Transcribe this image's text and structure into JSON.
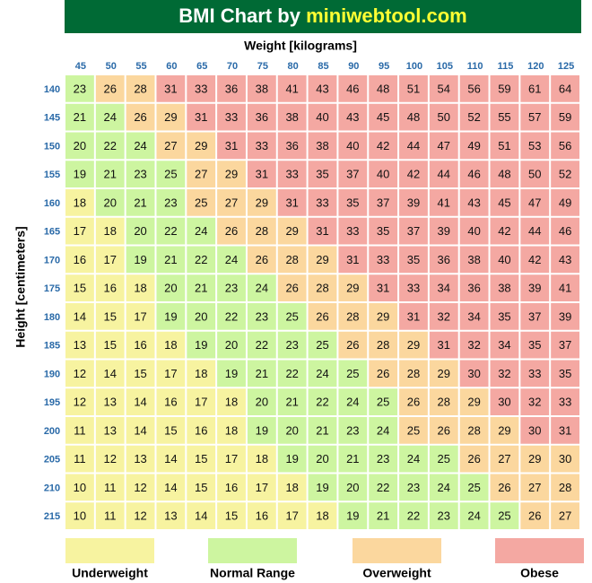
{
  "header": {
    "title": "BMI Chart by",
    "site": "miniwebtool.com"
  },
  "table": {
    "x_label": "Weight [kilograms]",
    "y_label": "Height [centimeters]",
    "weights": [
      45,
      50,
      55,
      60,
      65,
      70,
      75,
      80,
      85,
      90,
      95,
      100,
      105,
      110,
      115,
      120,
      125
    ],
    "heights": [
      140,
      145,
      150,
      155,
      160,
      165,
      170,
      175,
      180,
      185,
      190,
      195,
      200,
      205,
      210,
      215
    ],
    "rows": [
      [
        23,
        26,
        28,
        31,
        33,
        36,
        38,
        41,
        43,
        46,
        48,
        51,
        54,
        56,
        59,
        61,
        64
      ],
      [
        21,
        24,
        26,
        29,
        31,
        33,
        36,
        38,
        40,
        43,
        45,
        48,
        50,
        52,
        55,
        57,
        59
      ],
      [
        20,
        22,
        24,
        27,
        29,
        31,
        33,
        36,
        38,
        40,
        42,
        44,
        47,
        49,
        51,
        53,
        56
      ],
      [
        19,
        21,
        23,
        25,
        27,
        29,
        31,
        33,
        35,
        37,
        40,
        42,
        44,
        46,
        48,
        50,
        52
      ],
      [
        18,
        20,
        21,
        23,
        25,
        27,
        29,
        31,
        33,
        35,
        37,
        39,
        41,
        43,
        45,
        47,
        49
      ],
      [
        17,
        18,
        20,
        22,
        24,
        26,
        28,
        29,
        31,
        33,
        35,
        37,
        39,
        40,
        42,
        44,
        46
      ],
      [
        16,
        17,
        19,
        21,
        22,
        24,
        26,
        28,
        29,
        31,
        33,
        35,
        36,
        38,
        40,
        42,
        43
      ],
      [
        15,
        16,
        18,
        20,
        21,
        23,
        24,
        26,
        28,
        29,
        31,
        33,
        34,
        36,
        38,
        39,
        41
      ],
      [
        14,
        15,
        17,
        19,
        20,
        22,
        23,
        25,
        26,
        28,
        29,
        31,
        32,
        34,
        35,
        37,
        39
      ],
      [
        13,
        15,
        16,
        18,
        19,
        20,
        22,
        23,
        25,
        26,
        28,
        29,
        31,
        32,
        34,
        35,
        37
      ],
      [
        12,
        14,
        15,
        17,
        18,
        19,
        21,
        22,
        24,
        25,
        26,
        28,
        29,
        30,
        32,
        33,
        35
      ],
      [
        12,
        13,
        14,
        16,
        17,
        18,
        20,
        21,
        22,
        24,
        25,
        26,
        28,
        29,
        30,
        32,
        33
      ],
      [
        11,
        13,
        14,
        15,
        16,
        18,
        19,
        20,
        21,
        23,
        24,
        25,
        26,
        28,
        29,
        30,
        31
      ],
      [
        11,
        12,
        13,
        14,
        15,
        17,
        18,
        19,
        20,
        21,
        23,
        24,
        25,
        26,
        27,
        29,
        30
      ],
      [
        10,
        11,
        12,
        14,
        15,
        16,
        17,
        18,
        19,
        20,
        22,
        23,
        24,
        25,
        26,
        27,
        28
      ],
      [
        10,
        11,
        12,
        13,
        14,
        15,
        16,
        17,
        18,
        19,
        21,
        22,
        23,
        24,
        25,
        26,
        27
      ]
    ]
  },
  "legend": [
    {
      "label": "Underweight",
      "color": "#f7f3a0"
    },
    {
      "label": "Normal Range",
      "color": "#cdf5a0"
    },
    {
      "label": "Overweight",
      "color": "#fbd79e"
    },
    {
      "label": "Obese",
      "color": "#f4a8a2"
    }
  ]
}
